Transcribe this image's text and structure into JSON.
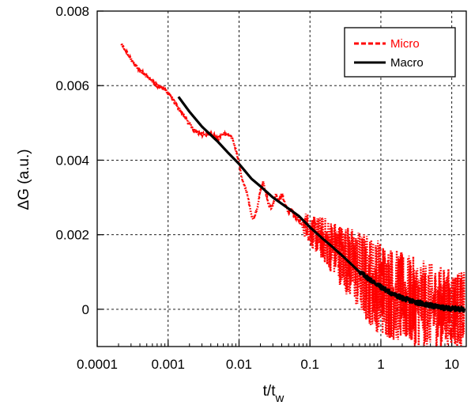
{
  "chart_data": {
    "type": "line",
    "title": "",
    "xlabel": "t/t",
    "xlabel_subscript": "w",
    "ylabel": "ΔG (a.u.)",
    "x_scale": "log",
    "xlim": [
      0.0001,
      16
    ],
    "ylim": [
      -0.001,
      0.008
    ],
    "x_ticks": [
      {
        "value": 0.0001,
        "label": "0.0001"
      },
      {
        "value": 0.001,
        "label": "0.001"
      },
      {
        "value": 0.01,
        "label": "0.01"
      },
      {
        "value": 0.1,
        "label": "0.1"
      },
      {
        "value": 1,
        "label": "1"
      },
      {
        "value": 10,
        "label": "10"
      }
    ],
    "y_ticks": [
      {
        "value": 0,
        "label": "0"
      },
      {
        "value": 0.002,
        "label": "0.002"
      },
      {
        "value": 0.004,
        "label": "0.004"
      },
      {
        "value": 0.006,
        "label": "0.006"
      },
      {
        "value": 0.008,
        "label": "0.008"
      }
    ],
    "grid": true,
    "legend": {
      "position": "top-right"
    },
    "series": [
      {
        "name": "Micro",
        "color": "#ff0000",
        "style": "dotted",
        "points": [
          [
            0.00022,
            0.0071
          ],
          [
            0.0003,
            0.0067
          ],
          [
            0.0004,
            0.0064
          ],
          [
            0.00055,
            0.0062
          ],
          [
            0.0007,
            0.006
          ],
          [
            0.0009,
            0.0059
          ],
          [
            0.0011,
            0.0057
          ],
          [
            0.0014,
            0.0054
          ],
          [
            0.0018,
            0.0051
          ],
          [
            0.0023,
            0.0048
          ],
          [
            0.003,
            0.0047
          ],
          [
            0.004,
            0.0047
          ],
          [
            0.005,
            0.0046
          ],
          [
            0.006,
            0.0047
          ],
          [
            0.007,
            0.0047
          ],
          [
            0.008,
            0.0046
          ],
          [
            0.009,
            0.0043
          ],
          [
            0.01,
            0.0039
          ],
          [
            0.011,
            0.0035
          ],
          [
            0.012,
            0.0033
          ],
          [
            0.013,
            0.0031
          ],
          [
            0.014,
            0.0028
          ],
          [
            0.015,
            0.0025
          ],
          [
            0.016,
            0.0024
          ],
          [
            0.018,
            0.0027
          ],
          [
            0.02,
            0.0032
          ],
          [
            0.022,
            0.0034
          ],
          [
            0.024,
            0.0031
          ],
          [
            0.027,
            0.0027
          ],
          [
            0.03,
            0.0028
          ],
          [
            0.033,
            0.0031
          ],
          [
            0.036,
            0.0029
          ],
          [
            0.04,
            0.0031
          ],
          [
            0.045,
            0.0028
          ],
          [
            0.05,
            0.0026
          ],
          [
            0.055,
            0.0027
          ],
          [
            0.06,
            0.0025
          ],
          [
            0.07,
            0.0024
          ],
          [
            0.08,
            0.0022
          ],
          [
            0.09,
            0.0023
          ],
          [
            0.1,
            0.0021
          ],
          [
            0.12,
            0.002
          ],
          [
            0.15,
            0.0019
          ],
          [
            0.2,
            0.0017
          ],
          [
            0.3,
            0.0014
          ],
          [
            0.5,
            0.001
          ],
          [
            0.8,
            0.0007
          ],
          [
            1.2,
            0.0005
          ],
          [
            2,
            0.0003
          ],
          [
            3,
            0.0002
          ],
          [
            5,
            0.0001
          ],
          [
            8,
            5e-05
          ],
          [
            15,
            0.0
          ]
        ],
        "noise_band": [
          [
            0.08,
            0.0003
          ],
          [
            0.15,
            0.0006
          ],
          [
            0.3,
            0.0009
          ],
          [
            0.6,
            0.0012
          ],
          [
            1,
            0.0013
          ],
          [
            3,
            0.0012
          ],
          [
            8,
            0.0011
          ],
          [
            15,
            0.001
          ]
        ]
      },
      {
        "name": "Macro",
        "color": "#000000",
        "style": "solid",
        "points": [
          [
            0.0014,
            0.0057
          ],
          [
            0.002,
            0.0053
          ],
          [
            0.003,
            0.0049
          ],
          [
            0.005,
            0.0045
          ],
          [
            0.007,
            0.0042
          ],
          [
            0.01,
            0.0039
          ],
          [
            0.015,
            0.0035
          ],
          [
            0.02,
            0.0033
          ],
          [
            0.03,
            0.003
          ],
          [
            0.05,
            0.0027
          ],
          [
            0.07,
            0.0025
          ],
          [
            0.1,
            0.0022
          ],
          [
            0.15,
            0.0019
          ],
          [
            0.2,
            0.0017
          ],
          [
            0.3,
            0.0014
          ],
          [
            0.5,
            0.001
          ],
          [
            0.7,
            0.0008
          ],
          [
            1,
            0.0006
          ],
          [
            1.5,
            0.0004
          ],
          [
            2,
            0.0003
          ],
          [
            3,
            0.0002
          ],
          [
            5,
            0.0001
          ],
          [
            8,
            3e-05
          ],
          [
            15,
            0.0
          ]
        ]
      }
    ]
  }
}
